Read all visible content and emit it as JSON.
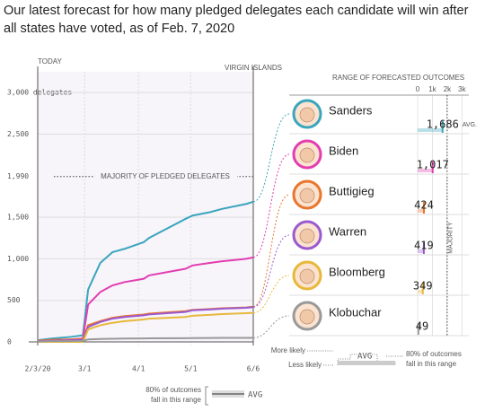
{
  "chart_data": {
    "type": "line",
    "title": "Our latest forecast for how many pledged delegates each candidate will win after all states have voted, as of Feb. 7, 2020",
    "x": [
      "2020-02-03",
      "2020-02-11",
      "2020-02-22",
      "2020-02-29",
      "2020-03-03",
      "2020-03-10",
      "2020-03-17",
      "2020-03-24",
      "2020-04-04",
      "2020-04-07",
      "2020-04-28",
      "2020-05-02",
      "2020-05-12",
      "2020-05-19",
      "2020-06-02",
      "2020-06-06"
    ],
    "xlim": [
      "2020-02-03",
      "2020-06-06"
    ],
    "xticks": [
      {
        "value": "2020-02-03",
        "label": "2/3/20"
      },
      {
        "value": "2020-03-01",
        "label": "3/1"
      },
      {
        "value": "2020-04-01",
        "label": "4/1"
      },
      {
        "value": "2020-05-01",
        "label": "5/1"
      },
      {
        "value": "2020-06-06",
        "label": "6/6"
      }
    ],
    "ylim": [
      0,
      3250
    ],
    "yticks": [
      0,
      500,
      {
        "value": 1000,
        "label": "1,000"
      },
      {
        "value": 1500,
        "label": "1,500"
      },
      {
        "value": 1990,
        "label": "1,990"
      },
      {
        "value": 2500,
        "label": "2,500"
      },
      {
        "value": 3000,
        "label": "3,000 delegates"
      }
    ],
    "grid": true,
    "annotations": {
      "today": "TODAY",
      "virgin_islands": "VIRGIN ISLANDS",
      "majority": "MAJORITY OF PLEDGED DELEGATES"
    },
    "series": [
      {
        "name": "Sanders",
        "color": "#3aa5bd",
        "avg": 1686,
        "avg_label": "1,686",
        "values": [
          20,
          40,
          60,
          80,
          630,
          950,
          1080,
          1120,
          1200,
          1250,
          1480,
          1520,
          1560,
          1600,
          1660,
          1686
        ]
      },
      {
        "name": "Biden",
        "color": "#e33db0",
        "avg": 1017,
        "avg_label": "1,017",
        "values": [
          10,
          20,
          30,
          40,
          450,
          600,
          680,
          720,
          760,
          800,
          880,
          920,
          950,
          970,
          1000,
          1017
        ]
      },
      {
        "name": "Buttigieg",
        "color": "#e8762d",
        "avg": 424,
        "avg_label": "424",
        "values": [
          15,
          25,
          30,
          35,
          200,
          250,
          290,
          310,
          330,
          340,
          370,
          385,
          395,
          405,
          415,
          424
        ]
      },
      {
        "name": "Warren",
        "color": "#9b59d0",
        "avg": 419,
        "avg_label": "419",
        "values": [
          10,
          15,
          20,
          25,
          180,
          240,
          280,
          300,
          320,
          330,
          360,
          380,
          390,
          400,
          410,
          419
        ]
      },
      {
        "name": "Bloomberg",
        "color": "#e8b83b",
        "avg": 349,
        "avg_label": "349",
        "values": [
          0,
          0,
          0,
          0,
          150,
          200,
          230,
          250,
          270,
          280,
          300,
          315,
          325,
          335,
          345,
          349
        ]
      },
      {
        "name": "Klobuchar",
        "color": "#999999",
        "avg": 49,
        "avg_label": "49",
        "values": [
          5,
          8,
          10,
          12,
          30,
          35,
          38,
          40,
          42,
          43,
          45,
          46,
          47,
          48,
          49,
          49
        ]
      }
    ],
    "panel": {
      "title": "RANGE OF FORECASTED OUTCOMES",
      "xlim": [
        0,
        3400
      ],
      "xticks": [
        0,
        {
          "value": 1000,
          "label": "1k"
        },
        {
          "value": 2000,
          "label": "2k"
        },
        {
          "value": 3000,
          "label": "3k"
        }
      ],
      "majority_label": "MAJORITY",
      "avg_suffix": "AVG."
    },
    "legend": {
      "more": "More likely",
      "less": "Less likely",
      "avg": "AVG",
      "range_lines": [
        "80% of outcomes",
        "fall in this range"
      ]
    }
  }
}
